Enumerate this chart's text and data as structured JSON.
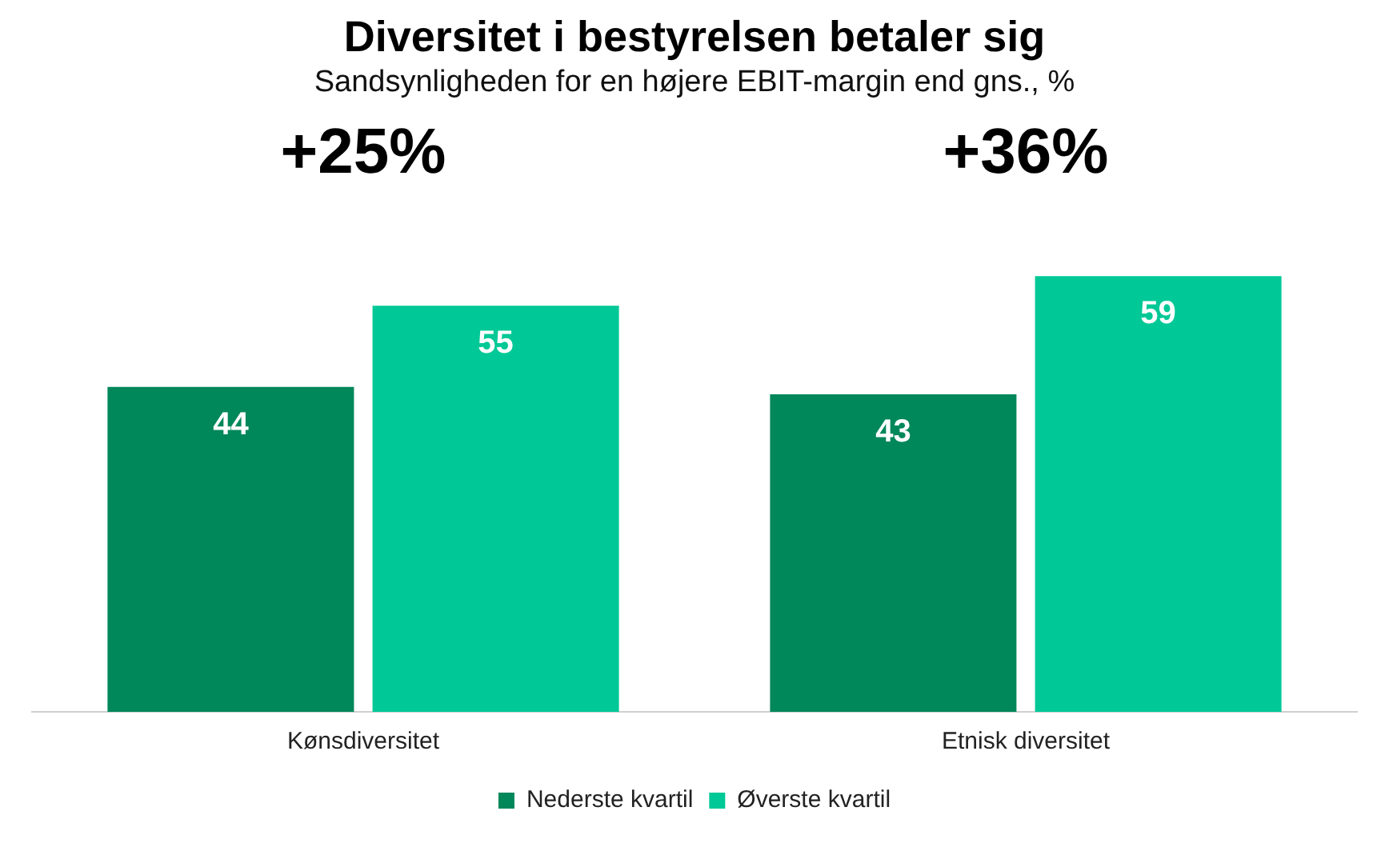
{
  "chart_data": {
    "type": "bar",
    "title": "Diversitet i bestyrelsen betaler sig",
    "subtitle": "Sandsynligheden for en højere EBIT-margin end gns., %",
    "categories": [
      "Kønsdiversitet",
      "Etnisk diversitet"
    ],
    "series": [
      {
        "name": "Nederste kvartil",
        "color": "#00875a",
        "values": [
          44,
          43
        ]
      },
      {
        "name": "Øverste kvartil",
        "color": "#00c896",
        "values": [
          55,
          59
        ]
      }
    ],
    "annotations": [
      "+25%",
      "+36%"
    ],
    "data_labels": true,
    "grid": false,
    "legend": "bottom",
    "tick_labels": "x"
  }
}
